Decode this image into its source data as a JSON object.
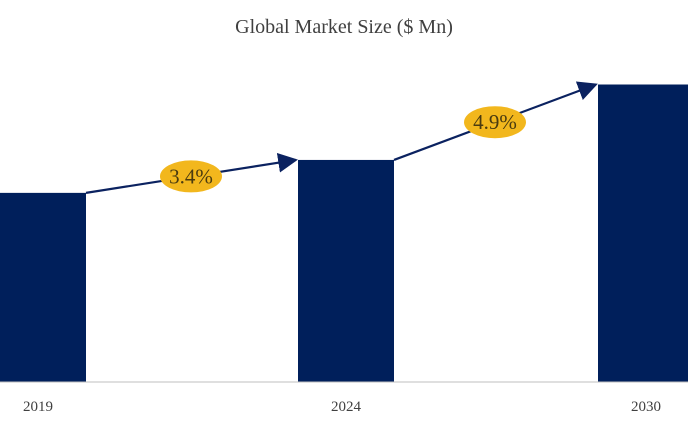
{
  "chart_data": {
    "type": "bar",
    "title": "Global Market Size ($ Mn)",
    "categories": [
      "2019",
      "2024",
      "2030"
    ],
    "values": [
      178,
      209,
      280
    ],
    "ylim": [
      0,
      320
    ],
    "grid": false,
    "legend": "none",
    "annotations": [
      {
        "text": "3.4%",
        "from": "2019",
        "to": "2024"
      },
      {
        "text": "4.9%",
        "from": "2024",
        "to": "2030"
      }
    ],
    "colors": {
      "bar": "#001f5b",
      "arrow": "#0b2260",
      "badge": "#f2b71d",
      "badge_text": "#4a3b10",
      "tick": "#404040",
      "axis": "#bfbfbf"
    }
  }
}
